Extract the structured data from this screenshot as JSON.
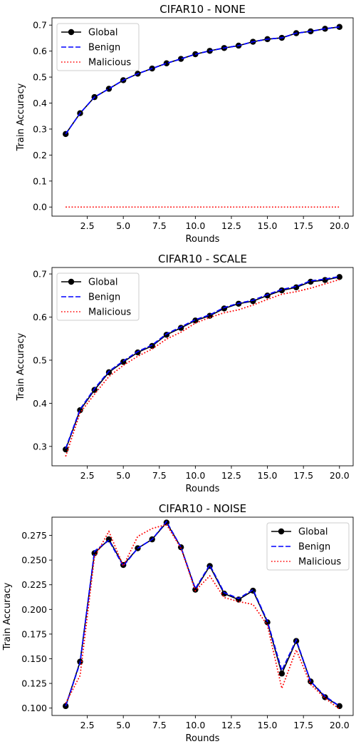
{
  "chart_data": [
    {
      "type": "line",
      "title": "CIFAR10 - NONE",
      "xlabel": "Rounds",
      "ylabel": "Train Accuracy",
      "xlim": [
        0.05,
        20.95
      ],
      "ylim": [
        -0.035,
        0.728
      ],
      "xticks": [
        2.5,
        5.0,
        7.5,
        10.0,
        12.5,
        15.0,
        17.5,
        20.0
      ],
      "xtick_labels": [
        "2.5",
        "5.0",
        "7.5",
        "10.0",
        "12.5",
        "15.0",
        "17.5",
        "20.0"
      ],
      "yticks": [
        0.0,
        0.1,
        0.2,
        0.3,
        0.4,
        0.5,
        0.6,
        0.7
      ],
      "ytick_labels": [
        "0.0",
        "0.1",
        "0.2",
        "0.3",
        "0.4",
        "0.5",
        "0.6",
        "0.7"
      ],
      "legend_position": "top-left",
      "grid": false,
      "x": [
        1,
        2,
        3,
        4,
        5,
        6,
        7,
        8,
        9,
        10,
        11,
        12,
        13,
        14,
        15,
        16,
        17,
        18,
        19,
        20
      ],
      "series": [
        {
          "name": "Global",
          "style": "solid-marker",
          "color": "#000000",
          "values": [
            0.281,
            0.361,
            0.423,
            0.455,
            0.488,
            0.513,
            0.533,
            0.553,
            0.57,
            0.588,
            0.601,
            0.612,
            0.621,
            0.636,
            0.646,
            0.651,
            0.669,
            0.676,
            0.686,
            0.693
          ]
        },
        {
          "name": "Benign",
          "style": "dashed",
          "color": "#0000ff",
          "values": [
            0.281,
            0.361,
            0.423,
            0.455,
            0.488,
            0.513,
            0.533,
            0.553,
            0.57,
            0.588,
            0.601,
            0.612,
            0.621,
            0.636,
            0.646,
            0.651,
            0.669,
            0.676,
            0.686,
            0.693
          ]
        },
        {
          "name": "Malicious",
          "style": "dotted",
          "color": "#ff0000",
          "values": [
            0,
            0,
            0,
            0,
            0,
            0,
            0,
            0,
            0,
            0,
            0,
            0,
            0,
            0,
            0,
            0,
            0,
            0,
            0,
            0
          ]
        }
      ]
    },
    {
      "type": "line",
      "title": "CIFAR10 - SCALE",
      "xlabel": "Rounds",
      "ylabel": "Train Accuracy",
      "xlim": [
        0.05,
        20.95
      ],
      "ylim": [
        0.255,
        0.715
      ],
      "xticks": [
        2.5,
        5.0,
        7.5,
        10.0,
        12.5,
        15.0,
        17.5,
        20.0
      ],
      "xtick_labels": [
        "2.5",
        "5.0",
        "7.5",
        "10.0",
        "12.5",
        "15.0",
        "17.5",
        "20.0"
      ],
      "yticks": [
        0.3,
        0.4,
        0.5,
        0.6,
        0.7
      ],
      "ytick_labels": [
        "0.3",
        "0.4",
        "0.5",
        "0.6",
        "0.7"
      ],
      "legend_position": "top-left",
      "grid": false,
      "x": [
        1,
        2,
        3,
        4,
        5,
        6,
        7,
        8,
        9,
        10,
        11,
        12,
        13,
        14,
        15,
        16,
        17,
        18,
        19,
        20
      ],
      "series": [
        {
          "name": "Global",
          "style": "solid-marker",
          "color": "#000000",
          "values": [
            0.293,
            0.384,
            0.431,
            0.472,
            0.496,
            0.518,
            0.533,
            0.559,
            0.575,
            0.592,
            0.603,
            0.62,
            0.631,
            0.637,
            0.65,
            0.662,
            0.669,
            0.682,
            0.686,
            0.693
          ]
        },
        {
          "name": "Benign",
          "style": "dashed",
          "color": "#0000ff",
          "values": [
            0.295,
            0.386,
            0.434,
            0.474,
            0.498,
            0.52,
            0.535,
            0.561,
            0.577,
            0.594,
            0.605,
            0.622,
            0.632,
            0.639,
            0.652,
            0.664,
            0.671,
            0.684,
            0.688,
            0.694
          ]
        },
        {
          "name": "Malicious",
          "style": "dotted",
          "color": "#ff0000",
          "values": [
            0.277,
            0.378,
            0.421,
            0.462,
            0.488,
            0.509,
            0.526,
            0.549,
            0.565,
            0.586,
            0.599,
            0.61,
            0.617,
            0.628,
            0.641,
            0.653,
            0.659,
            0.667,
            0.677,
            0.687
          ]
        }
      ]
    },
    {
      "type": "line",
      "title": "CIFAR10 - NOISE",
      "xlabel": "Rounds",
      "ylabel": "Train Accuracy",
      "xlim": [
        0.05,
        20.95
      ],
      "ylim": [
        0.0925,
        0.2935
      ],
      "xticks": [
        2.5,
        5.0,
        7.5,
        10.0,
        12.5,
        15.0,
        17.5,
        20.0
      ],
      "xtick_labels": [
        "2.5",
        "5.0",
        "7.5",
        "10.0",
        "12.5",
        "15.0",
        "17.5",
        "20.0"
      ],
      "yticks": [
        0.1,
        0.125,
        0.15,
        0.175,
        0.2,
        0.225,
        0.25,
        0.275
      ],
      "ytick_labels": [
        "0.100",
        "0.125",
        "0.150",
        "0.175",
        "0.200",
        "0.225",
        "0.250",
        "0.275"
      ],
      "legend_position": "top-right",
      "grid": false,
      "x": [
        1,
        2,
        3,
        4,
        5,
        6,
        7,
        8,
        9,
        10,
        11,
        12,
        13,
        14,
        15,
        16,
        17,
        18,
        19,
        20
      ],
      "series": [
        {
          "name": "Global",
          "style": "solid-marker",
          "color": "#000000",
          "values": [
            0.102,
            0.147,
            0.257,
            0.271,
            0.245,
            0.262,
            0.271,
            0.288,
            0.263,
            0.22,
            0.244,
            0.216,
            0.21,
            0.219,
            0.187,
            0.135,
            0.168,
            0.127,
            0.111,
            0.102
          ]
        },
        {
          "name": "Benign",
          "style": "dashed",
          "color": "#0000ff",
          "values": [
            0.102,
            0.146,
            0.259,
            0.27,
            0.244,
            0.262,
            0.271,
            0.289,
            0.263,
            0.221,
            0.245,
            0.217,
            0.211,
            0.22,
            0.188,
            0.138,
            0.169,
            0.127,
            0.112,
            0.102
          ]
        },
        {
          "name": "Malicious",
          "style": "dotted",
          "color": "#ff0000",
          "values": [
            0.105,
            0.133,
            0.253,
            0.279,
            0.244,
            0.274,
            0.282,
            0.286,
            0.262,
            0.219,
            0.234,
            0.212,
            0.208,
            0.205,
            0.184,
            0.12,
            0.159,
            0.124,
            0.11,
            0.099
          ]
        }
      ]
    }
  ]
}
